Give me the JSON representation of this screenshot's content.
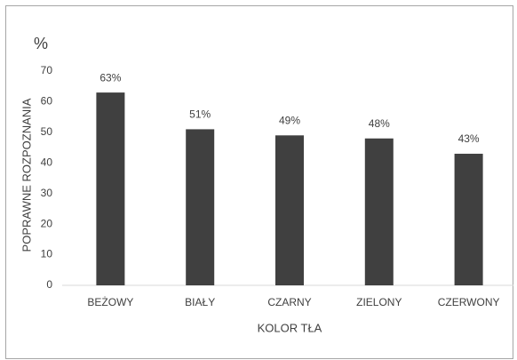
{
  "chart_data": {
    "type": "bar",
    "y_axis_unit": "%",
    "ylabel": "POPRAWNE ROZPOZNANIA",
    "xlabel": "KOLOR TŁA",
    "categories": [
      "BEŻOWY",
      "BIAŁY",
      "CZARNY",
      "ZIELONY",
      "CZERWONY"
    ],
    "values": [
      63,
      51,
      49,
      48,
      43
    ],
    "value_labels": [
      "63%",
      "51%",
      "49%",
      "48%",
      "43%"
    ],
    "color": "#404040",
    "ylim": [
      0,
      70
    ],
    "yticks": [
      0,
      10,
      20,
      30,
      40,
      50,
      60,
      70
    ],
    "grid": false
  }
}
